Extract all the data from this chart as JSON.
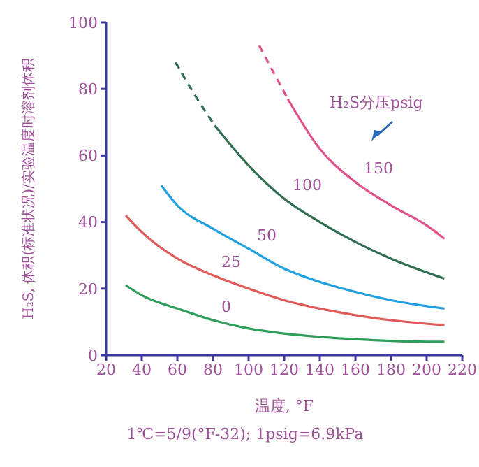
{
  "chart_data": {
    "type": "line",
    "xlabel": "温度, °F",
    "ylabel": "H₂S, 体积(标准状况)/实验温度时溶剂体积",
    "xlim": [
      20,
      220
    ],
    "xticks": [
      20,
      40,
      60,
      80,
      100,
      120,
      140,
      160,
      180,
      200,
      220
    ],
    "ylim": [
      0,
      100
    ],
    "yticks": [
      0,
      20,
      40,
      60,
      80,
      100
    ],
    "grid": false,
    "marker": "none",
    "series": [
      {
        "name": "0",
        "color": "#2e9e5a",
        "line_style": "solid",
        "x": [
          31,
          40,
          60,
          80,
          100,
          120,
          140,
          160,
          180,
          210
        ],
        "values": [
          21,
          18,
          14,
          10.5,
          8,
          6.5,
          5.5,
          4.8,
          4.3,
          4
        ]
      },
      {
        "name": "25",
        "color": "#e05a5a",
        "line_style": "solid",
        "x": [
          31,
          40,
          60,
          80,
          100,
          120,
          140,
          160,
          180,
          210
        ],
        "values": [
          42,
          37,
          29,
          24,
          20,
          16.5,
          14,
          12,
          10.5,
          9
        ]
      },
      {
        "name": "50",
        "color": "#1fa0e0",
        "line_style": "solid",
        "x": [
          51,
          60,
          80,
          100,
          120,
          140,
          160,
          180,
          210
        ],
        "values": [
          51,
          45,
          38,
          32,
          26,
          22,
          19,
          16.5,
          14
        ]
      },
      {
        "color": "#2f6e4e",
        "line_style": "dashed",
        "x": [
          59,
          70,
          81
        ],
        "values": [
          88,
          78,
          69
        ]
      },
      {
        "name": "100",
        "color": "#2f6e4e",
        "line_style": "solid",
        "x": [
          81,
          100,
          120,
          140,
          160,
          180,
          210
        ],
        "values": [
          69,
          57,
          47,
          40,
          34,
          29,
          23
        ]
      },
      {
        "color": "#e0508a",
        "line_style": "dashed",
        "x": [
          106,
          114,
          122
        ],
        "values": [
          93,
          85,
          77
        ]
      },
      {
        "name": "150",
        "color": "#e0508a",
        "line_style": "solid",
        "x": [
          122,
          140,
          160,
          180,
          200,
          210
        ],
        "values": [
          77,
          62,
          52,
          45,
          39,
          35
        ]
      }
    ],
    "annotations": [
      "H₂S分压psig",
      "1℃=5/9(°F-32); 1psig=6.9kPa"
    ]
  }
}
